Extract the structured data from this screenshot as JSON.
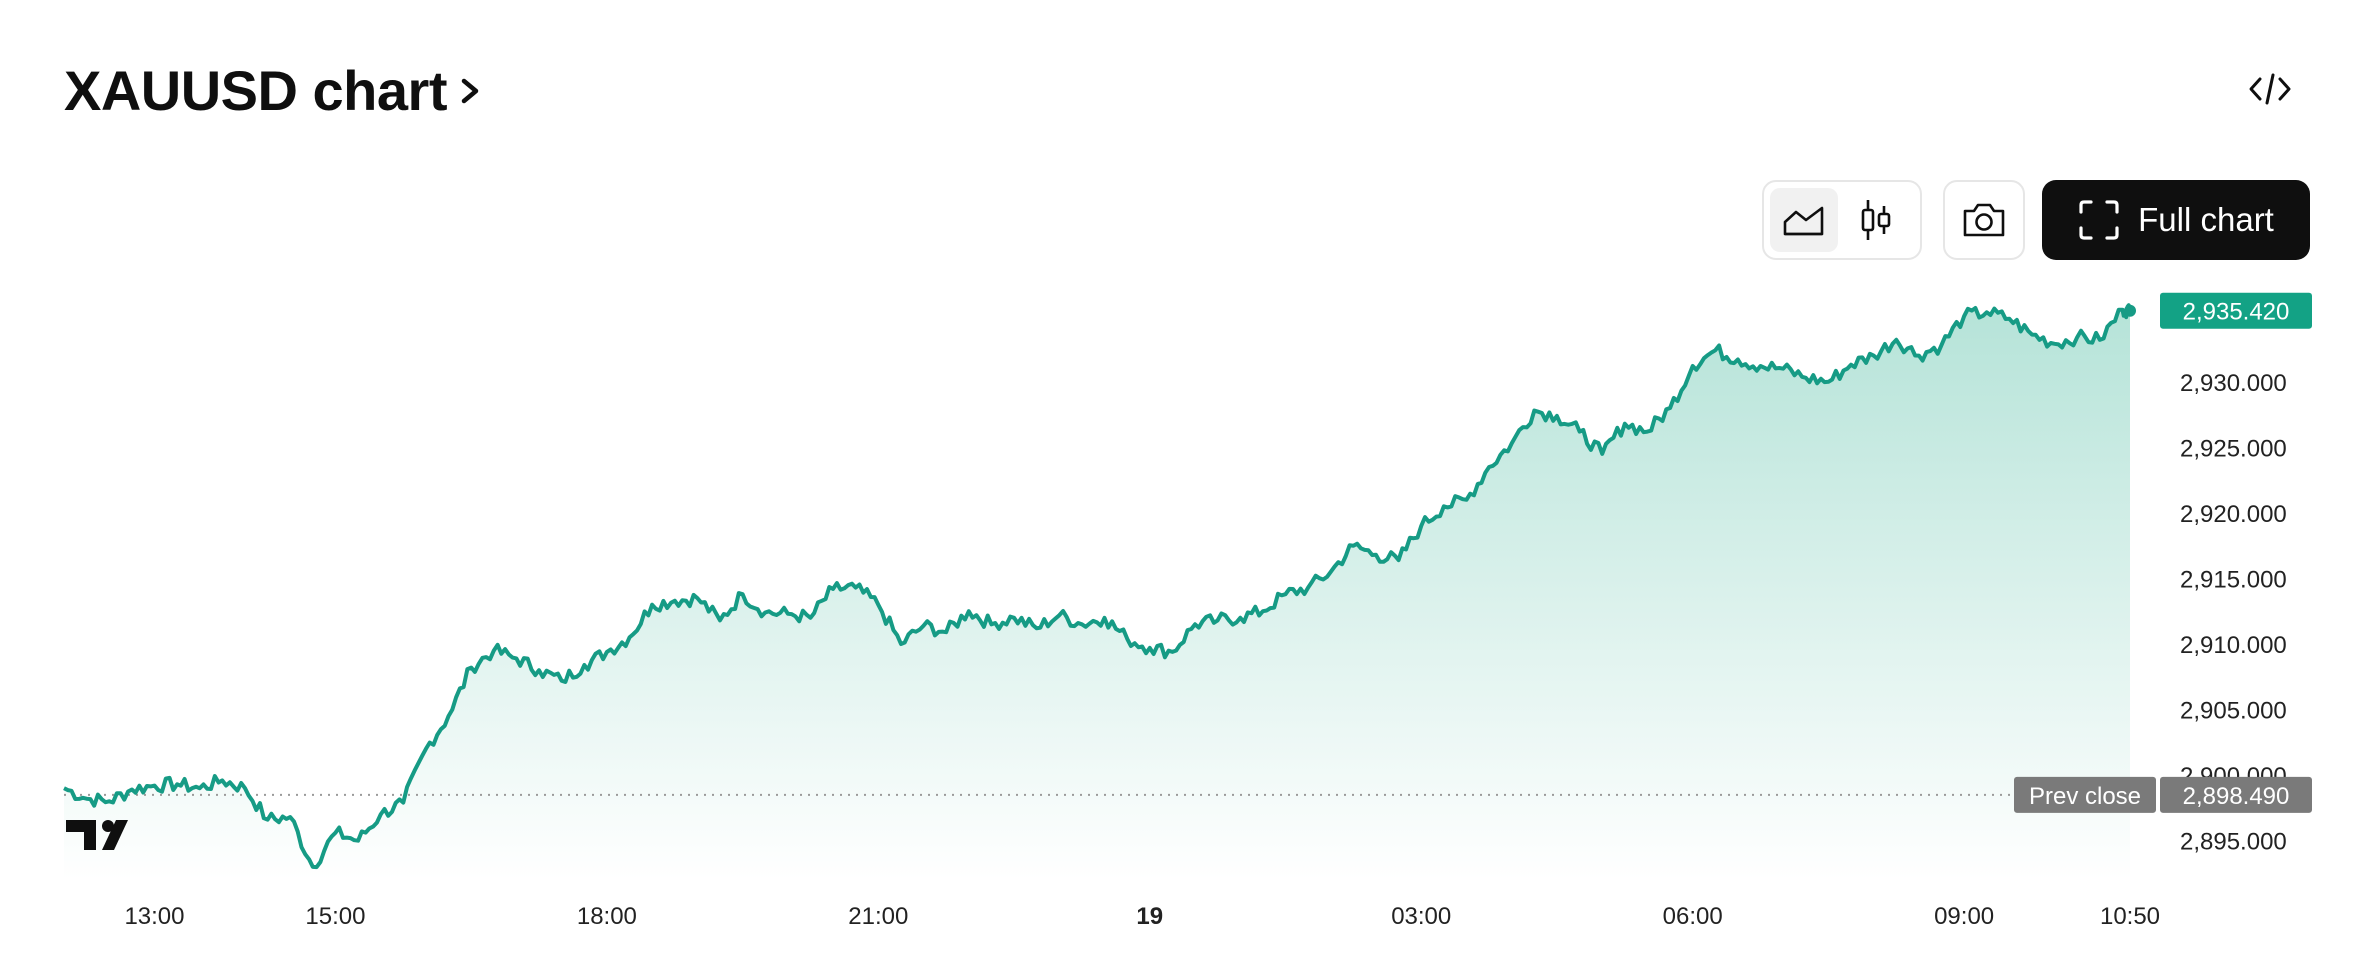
{
  "header": {
    "title": "XAUUSD chart",
    "chevron_icon": "chevron-right-icon",
    "embed_icon": "code-icon"
  },
  "toolbar": {
    "area_icon": "area-chart-icon",
    "candle_icon": "candlestick-icon",
    "camera_icon": "camera-icon",
    "full_chart_icon": "fullscreen-icon",
    "full_chart_label": "Full chart"
  },
  "colors": {
    "line": "#169b85",
    "fill_top": "#b5e3d8",
    "prev_close_badge": "#7a7a7a",
    "last_badge": "#13a285"
  },
  "logo": "tradingview-logo",
  "chart_data": {
    "type": "area",
    "symbol": "XAUUSD",
    "x_labels": [
      "13:00",
      "15:00",
      "18:00",
      "21:00",
      "19",
      "03:00",
      "06:00",
      "09:00",
      "10:50"
    ],
    "x_label_bold": "19",
    "y_ticks": [
      "2,895.000",
      "2,900.000",
      "2,905.000",
      "2,910.000",
      "2,915.000",
      "2,920.000",
      "2,925.000",
      "2,930.000"
    ],
    "ylim": [
      2892,
      2937
    ],
    "last_price": 2935.42,
    "last_price_label": "2,935.420",
    "prev_close": 2898.49,
    "prev_close_label": "2,898.490",
    "prev_close_text": "Prev close",
    "series": [
      {
        "points": [
          [
            "12:00",
            2899.0
          ],
          [
            "12:15",
            2898.2
          ],
          [
            "12:30",
            2898.0
          ],
          [
            "12:45",
            2898.9
          ],
          [
            "13:00",
            2899.2
          ],
          [
            "13:15",
            2899.3
          ],
          [
            "13:30",
            2899.0
          ],
          [
            "13:45",
            2899.6
          ],
          [
            "14:00",
            2899.0
          ],
          [
            "14:15",
            2896.6
          ],
          [
            "14:30",
            2896.8
          ],
          [
            "14:45",
            2893.0
          ],
          [
            "15:00",
            2895.6
          ],
          [
            "15:15",
            2895.0
          ],
          [
            "15:30",
            2897.0
          ],
          [
            "15:45",
            2897.9
          ],
          [
            "16:00",
            2902.0
          ],
          [
            "16:15",
            2904.5
          ],
          [
            "16:30",
            2908.2
          ],
          [
            "16:45",
            2909.5
          ],
          [
            "17:00",
            2908.9
          ],
          [
            "17:15",
            2908.0
          ],
          [
            "17:30",
            2907.2
          ],
          [
            "17:45",
            2908.4
          ],
          [
            "18:00",
            2909.4
          ],
          [
            "18:15",
            2910.5
          ],
          [
            "18:30",
            2913.0
          ],
          [
            "18:45",
            2913.3
          ],
          [
            "19:00",
            2913.5
          ],
          [
            "19:15",
            2911.8
          ],
          [
            "19:30",
            2913.8
          ],
          [
            "19:45",
            2912.4
          ],
          [
            "20:00",
            2912.3
          ],
          [
            "20:15",
            2912.0
          ],
          [
            "20:30",
            2914.2
          ],
          [
            "20:45",
            2914.3
          ],
          [
            "21:00",
            2913.0
          ],
          [
            "21:15",
            2910.0
          ],
          [
            "21:30",
            2911.4
          ],
          [
            "21:45",
            2910.9
          ],
          [
            "22:00",
            2912.5
          ],
          [
            "22:15",
            2911.5
          ],
          [
            "22:30",
            2912.0
          ],
          [
            "22:45",
            2911.2
          ],
          [
            "23:00",
            2912.2
          ],
          [
            "23:15",
            2911.5
          ],
          [
            "23:30",
            2912.0
          ],
          [
            "23:45",
            2910.4
          ],
          [
            "00:00",
            2909.7
          ],
          [
            "00:15",
            2909.4
          ],
          [
            "00:30",
            2911.5
          ],
          [
            "00:45",
            2911.8
          ],
          [
            "01:00",
            2912.0
          ],
          [
            "01:15",
            2912.5
          ],
          [
            "01:30",
            2913.8
          ],
          [
            "01:45",
            2914.3
          ],
          [
            "02:00",
            2915.5
          ],
          [
            "02:15",
            2917.5
          ],
          [
            "02:30",
            2916.8
          ],
          [
            "02:45",
            2916.4
          ],
          [
            "03:00",
            2919.0
          ],
          [
            "03:15",
            2920.5
          ],
          [
            "03:30",
            2921.0
          ],
          [
            "03:45",
            2923.5
          ],
          [
            "04:00",
            2925.3
          ],
          [
            "04:15",
            2927.8
          ],
          [
            "04:30",
            2927.4
          ],
          [
            "04:45",
            2926.2
          ],
          [
            "05:00",
            2924.5
          ],
          [
            "05:15",
            2926.8
          ],
          [
            "05:30",
            2926.2
          ],
          [
            "05:45",
            2928.0
          ],
          [
            "06:00",
            2931.2
          ],
          [
            "06:15",
            2932.4
          ],
          [
            "06:30",
            2931.7
          ],
          [
            "06:45",
            2931.2
          ],
          [
            "07:00",
            2931.0
          ],
          [
            "07:15",
            2930.3
          ],
          [
            "07:30",
            2930.0
          ],
          [
            "07:45",
            2931.3
          ],
          [
            "08:00",
            2932.0
          ],
          [
            "08:15",
            2933.2
          ],
          [
            "08:30",
            2932.0
          ],
          [
            "08:45",
            2932.8
          ],
          [
            "09:00",
            2935.0
          ],
          [
            "09:15",
            2935.3
          ],
          [
            "09:30",
            2934.8
          ],
          [
            "09:45",
            2933.6
          ],
          [
            "10:00",
            2932.9
          ],
          [
            "10:15",
            2933.4
          ],
          [
            "10:30",
            2933.2
          ],
          [
            "10:45",
            2935.5
          ],
          [
            "10:50",
            2935.42
          ]
        ]
      }
    ]
  }
}
